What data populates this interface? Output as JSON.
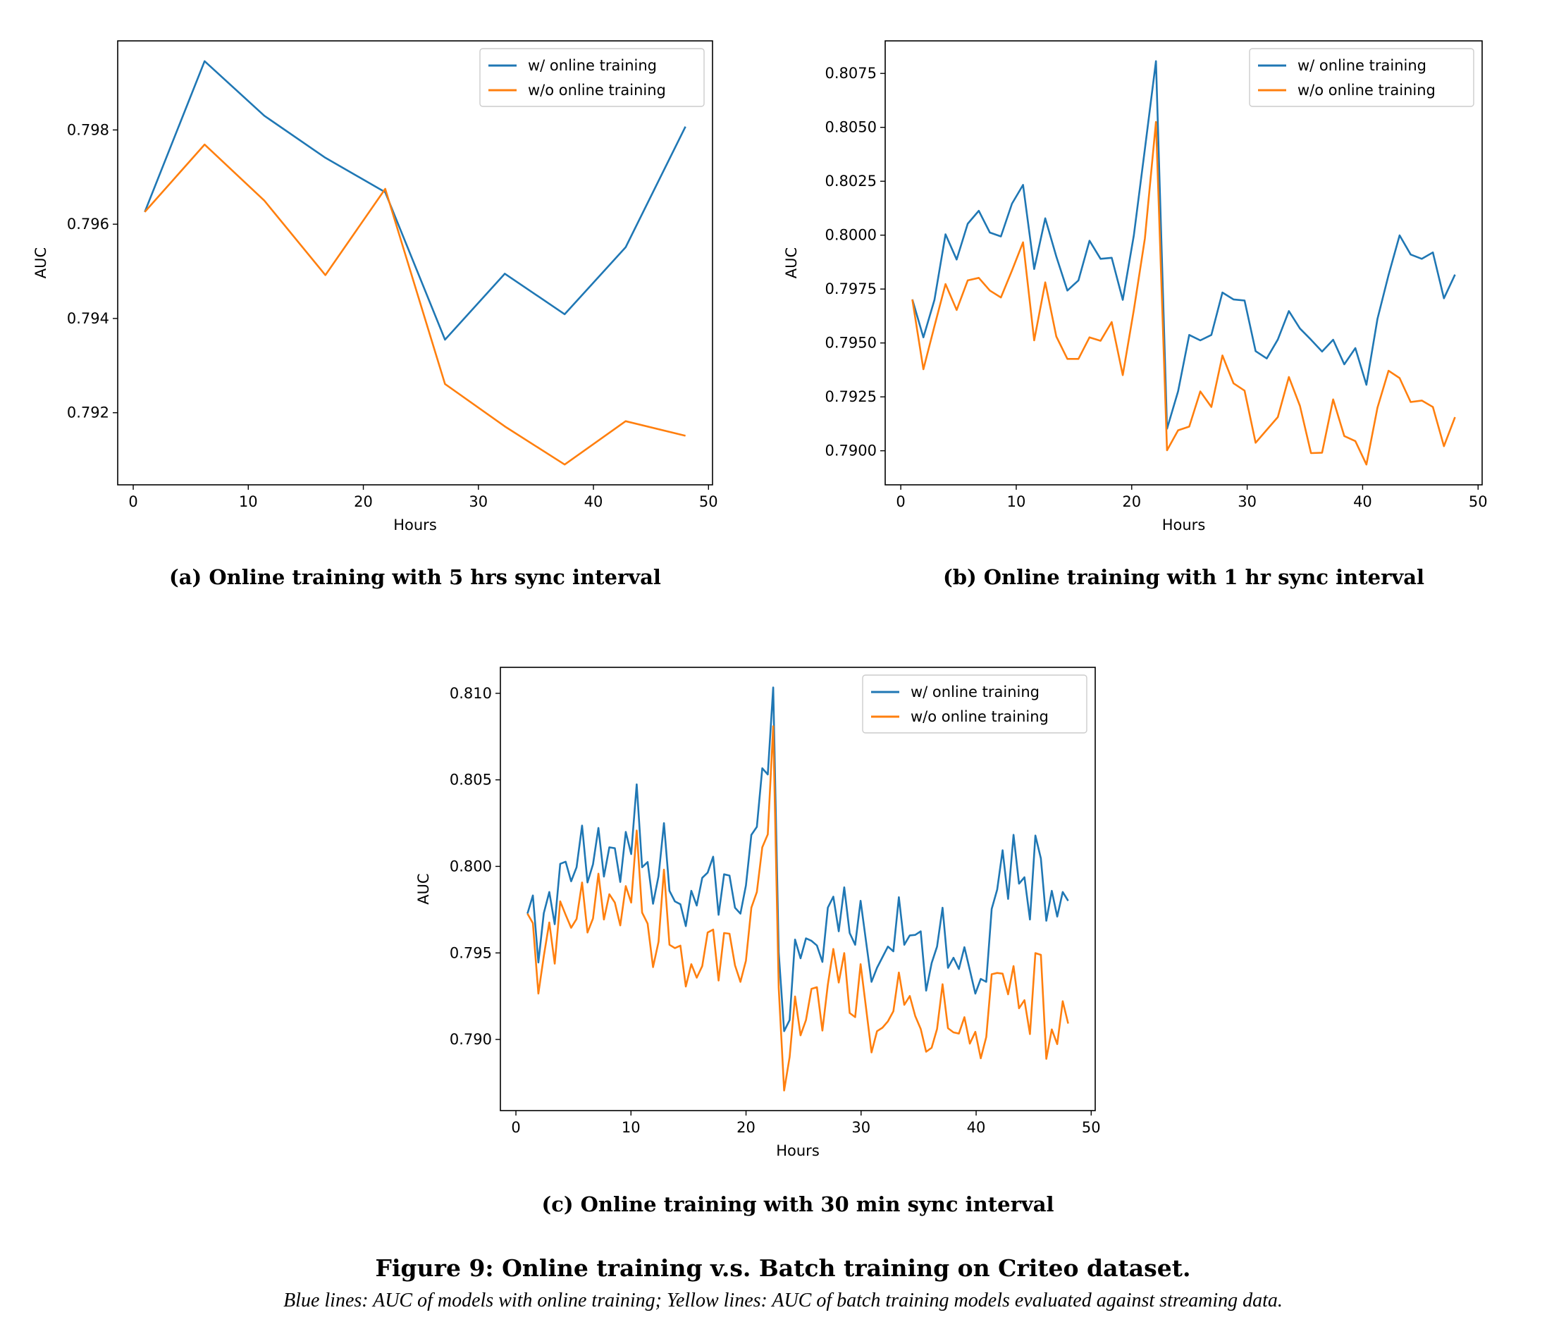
{
  "figure": {
    "title": "Figure 9: Online training v.s. Batch training on Criteo dataset.",
    "note": "Blue lines: AUC of models with online training; Yellow lines: AUC of batch training models evaluated against streaming data."
  },
  "colors": {
    "online": "#1f77b4",
    "batch": "#ff7f0e"
  },
  "chart_data": [
    {
      "id": "a",
      "type": "line",
      "caption": "(a) Online training with 5 hrs sync interval",
      "xlabel": "Hours",
      "ylabel": "AUC",
      "xlim": [
        -1.35,
        50.35
      ],
      "ylim": [
        0.79047,
        0.79989
      ],
      "xticks": [
        0,
        10,
        20,
        30,
        40,
        50
      ],
      "xtick_labels": [
        "0",
        "10",
        "20",
        "30",
        "40",
        "50"
      ],
      "yticks": [
        0.792,
        0.794,
        0.796,
        0.798
      ],
      "ytick_labels": [
        "0.792",
        "0.794",
        "0.796",
        "0.798"
      ],
      "legend": "top-right",
      "grid": false,
      "x": [
        1.0,
        6.2,
        11.4,
        16.7,
        21.9,
        27.1,
        32.3,
        37.5,
        42.8,
        48.0
      ],
      "series": [
        {
          "name": "w/ online training",
          "color": "#1f77b4",
          "values": [
            0.79626,
            0.79946,
            0.7983,
            0.79741,
            0.79668,
            0.79355,
            0.79495,
            0.79409,
            0.79551,
            0.79807
          ]
        },
        {
          "name": "w/o online training",
          "color": "#ff7f0e",
          "values": [
            0.79626,
            0.79769,
            0.7965,
            0.79492,
            0.79675,
            0.79261,
            0.79171,
            0.7909,
            0.79182,
            0.79151
          ]
        }
      ]
    },
    {
      "id": "b",
      "type": "line",
      "caption": "(b) Online training with 1 hr sync interval",
      "xlabel": "Hours",
      "ylabel": "AUC",
      "xlim": [
        -1.35,
        50.35
      ],
      "ylim": [
        0.78842,
        0.80901
      ],
      "xticks": [
        0,
        10,
        20,
        30,
        40,
        50
      ],
      "xtick_labels": [
        "0",
        "10",
        "20",
        "30",
        "40",
        "50"
      ],
      "yticks": [
        0.79,
        0.7925,
        0.795,
        0.7975,
        0.8,
        0.8025,
        0.805,
        0.8075
      ],
      "ytick_labels": [
        "0.7900",
        "0.7925",
        "0.7950",
        "0.7975",
        "0.8000",
        "0.8025",
        "0.8050",
        "0.8075"
      ],
      "legend": "top-right",
      "grid": false,
      "x_start": 1,
      "x_end": 48,
      "series": [
        {
          "name": "w/ online training",
          "color": "#1f77b4",
          "values": [
            0.79702,
            0.79526,
            0.797,
            0.80004,
            0.79887,
            0.80053,
            0.80113,
            0.80012,
            0.79994,
            0.80146,
            0.80233,
            0.79843,
            0.80078,
            0.79901,
            0.79743,
            0.7979,
            0.79974,
            0.7989,
            0.79895,
            0.797,
            0.79999,
            0.804,
            0.80807,
            0.79102,
            0.79276,
            0.79537,
            0.79512,
            0.79537,
            0.79734,
            0.79702,
            0.79697,
            0.79462,
            0.79428,
            0.79516,
            0.79648,
            0.79567,
            0.79515,
            0.7946,
            0.79515,
            0.79401,
            0.79476,
            0.79306,
            0.79612,
            0.79815,
            0.79999,
            0.7991,
            0.7989,
            0.7992,
            0.79707,
            0.79817
          ]
        },
        {
          "name": "w/o online training",
          "color": "#ff7f0e",
          "values": [
            0.79702,
            0.79378,
            0.79578,
            0.79773,
            0.79653,
            0.7979,
            0.79802,
            0.79743,
            0.79711,
            0.79836,
            0.79967,
            0.79512,
            0.79781,
            0.7953,
            0.79426,
            0.79426,
            0.79526,
            0.7951,
            0.79597,
            0.79351,
            0.79653,
            0.79985,
            0.80525,
            0.79002,
            0.79095,
            0.79112,
            0.79275,
            0.79203,
            0.79442,
            0.79313,
            0.79279,
            0.79037,
            0.79097,
            0.79156,
            0.79342,
            0.79208,
            0.78989,
            0.78991,
            0.79238,
            0.79068,
            0.79045,
            0.78936,
            0.792,
            0.79371,
            0.79337,
            0.79226,
            0.79233,
            0.79203,
            0.79021,
            0.79156
          ]
        }
      ]
    },
    {
      "id": "c",
      "type": "line",
      "caption": "(c) Online training with 30 min sync interval",
      "xlabel": "Hours",
      "ylabel": "AUC",
      "xlim": [
        -1.35,
        50.35
      ],
      "ylim": [
        0.78589,
        0.8115
      ],
      "xticks": [
        0,
        10,
        20,
        30,
        40,
        50
      ],
      "xtick_labels": [
        "0",
        "10",
        "20",
        "30",
        "40",
        "50"
      ],
      "yticks": [
        0.79,
        0.795,
        0.8,
        0.805,
        0.81
      ],
      "ytick_labels": [
        "0.790",
        "0.795",
        "0.800",
        "0.805",
        "0.810"
      ],
      "legend": "top-right",
      "grid": false,
      "x_start": 1,
      "x_end": 48,
      "series": [
        {
          "name": "w/ online training",
          "color": "#1f77b4",
          "values": [
            0.79727,
            0.79832,
            0.79445,
            0.7973,
            0.79852,
            0.79666,
            0.80015,
            0.80027,
            0.79914,
            0.79995,
            0.80236,
            0.79907,
            0.80012,
            0.80222,
            0.79941,
            0.8011,
            0.80105,
            0.7991,
            0.80199,
            0.80071,
            0.80474,
            0.79995,
            0.80025,
            0.79784,
            0.79944,
            0.8025,
            0.79859,
            0.79798,
            0.79781,
            0.79655,
            0.79859,
            0.79774,
            0.79934,
            0.79964,
            0.80056,
            0.7972,
            0.79954,
            0.79947,
            0.79761,
            0.79727,
            0.7989,
            0.80182,
            0.80228,
            0.80567,
            0.80531,
            0.81034,
            0.79503,
            0.79048,
            0.79112,
            0.79577,
            0.79469,
            0.79584,
            0.7957,
            0.79543,
            0.79448,
            0.79761,
            0.79825,
            0.79625,
            0.79879,
            0.79615,
            0.79547,
            0.79801,
            0.79564,
            0.79333,
            0.79414,
            0.79475,
            0.79537,
            0.79509,
            0.79822,
            0.79547,
            0.79601,
            0.79604,
            0.79625,
            0.79282,
            0.79441,
            0.79537,
            0.79761,
            0.79414,
            0.79472,
            0.79407,
            0.79533,
            0.79401,
            0.79265,
            0.7935,
            0.79333,
            0.79754,
            0.79866,
            0.80093,
            0.79812,
            0.80182,
            0.799,
            0.79937,
            0.79693,
            0.80178,
            0.80046,
            0.79686,
            0.79859,
            0.7971,
            0.79852,
            0.79801
          ]
        },
        {
          "name": "w/o online training",
          "color": "#ff7f0e",
          "values": [
            0.79727,
            0.79672,
            0.79265,
            0.79482,
            0.79676,
            0.79438,
            0.79798,
            0.7972,
            0.79645,
            0.79696,
            0.79907,
            0.79618,
            0.79699,
            0.79958,
            0.79693,
            0.79839,
            0.79791,
            0.79659,
            0.79886,
            0.79791,
            0.80207,
            0.79733,
            0.79669,
            0.79418,
            0.79564,
            0.79981,
            0.79547,
            0.79528,
            0.79542,
            0.79306,
            0.79435,
            0.79357,
            0.79424,
            0.79618,
            0.79635,
            0.7934,
            0.79615,
            0.79611,
            0.79428,
            0.79333,
            0.79455,
            0.79761,
            0.79852,
            0.8011,
            0.80185,
            0.8081,
            0.79299,
            0.78705,
            0.78898,
            0.79248,
            0.79024,
            0.79112,
            0.79292,
            0.79302,
            0.79051,
            0.79316,
            0.79523,
            0.79329,
            0.79499,
            0.79153,
            0.79129,
            0.79435,
            0.7918,
            0.78925,
            0.79048,
            0.79068,
            0.79105,
            0.79163,
            0.79387,
            0.792,
            0.79251,
            0.79136,
            0.79061,
            0.78929,
            0.78952,
            0.79061,
            0.79319,
            0.79065,
            0.79041,
            0.79034,
            0.79129,
            0.78976,
            0.79044,
            0.78891,
            0.79014,
            0.79377,
            0.79384,
            0.7938,
            0.79261,
            0.79424,
            0.7918,
            0.79227,
            0.79031,
            0.79499,
            0.79489,
            0.78888,
            0.79058,
            0.78973,
            0.79221,
            0.79092
          ]
        }
      ]
    }
  ]
}
